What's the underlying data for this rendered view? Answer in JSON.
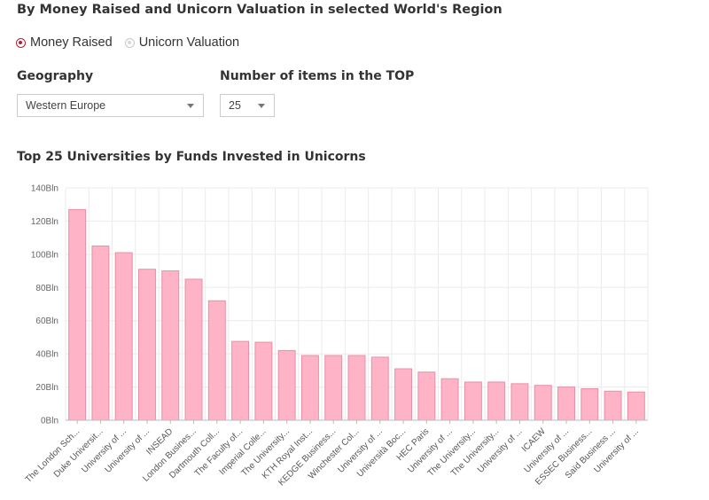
{
  "header": {
    "title": "By Money Raised and Unicorn Valuation in selected World's Region"
  },
  "mode": {
    "options": [
      {
        "label": "Money Raised",
        "selected": true
      },
      {
        "label": "Unicorn Valuation",
        "selected": false
      }
    ]
  },
  "filters": {
    "geography": {
      "label": "Geography",
      "value": "Western Europe"
    },
    "top_n": {
      "label": "Number of items in the TOP",
      "value": "25"
    }
  },
  "colors": {
    "bar_fill": "#ffb3c6",
    "bar_stroke": "#e88fa6",
    "radio_accent": "#b0203a",
    "grid": "#ebebeb"
  },
  "chart_data": {
    "type": "bar",
    "title": "Top 25 Universities by Funds Invested in Unicorns",
    "xlabel": "",
    "ylabel": "",
    "ylim": [
      0,
      140
    ],
    "y_ticks": [
      0,
      20,
      40,
      60,
      80,
      100,
      120,
      140
    ],
    "y_tick_suffix": "Bln",
    "grid": true,
    "categories": [
      "The London Sch...",
      "Duke Universit...",
      "University of ...",
      "University of ...",
      "INSEAD",
      "London Busines...",
      "Dartmouth Coll...",
      "The Faculty of...",
      "Imperial Colle...",
      "The University...",
      "KTH Royal Inst...",
      "KEDGE Business...",
      "Winchester Col...",
      "University of ...",
      "Università Boc...",
      "HEC Paris",
      "University of ...",
      "The University...",
      "The University...",
      "University of ...",
      "ICAEW",
      "University of ...",
      "ESSEC Business...",
      "Saïd Business ...",
      "University of ..."
    ],
    "values": [
      127,
      105,
      101,
      91,
      90,
      85,
      72,
      47.5,
      47,
      42,
      39,
      39,
      39,
      38,
      31,
      29,
      25,
      23,
      23,
      22,
      21,
      20,
      19,
      17.5,
      17
    ]
  }
}
